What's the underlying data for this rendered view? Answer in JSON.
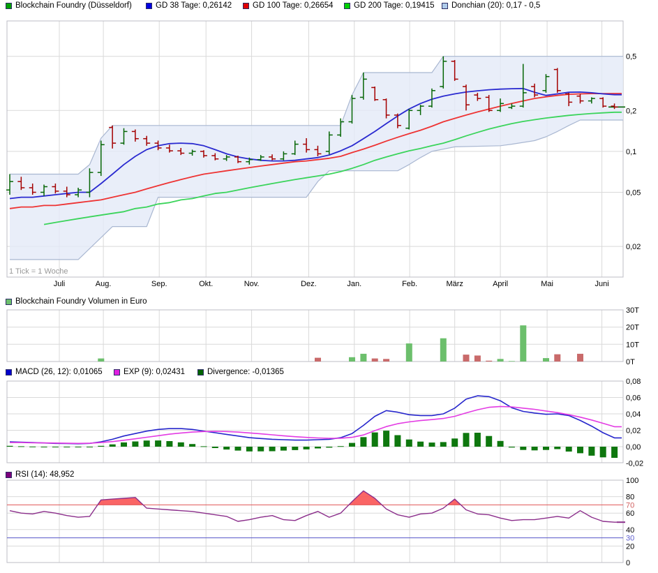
{
  "legends": {
    "price": [
      {
        "label": "Blockchain Foundry (Düsseldorf)",
        "color": "#00A000"
      },
      {
        "label": "GD 38 Tage: 0,26142",
        "color": "#0000E0"
      },
      {
        "label": "GD 100 Tage: 0,26654",
        "color": "#E00000"
      },
      {
        "label": "GD 200 Tage: 0,19415",
        "color": "#00D000"
      },
      {
        "label": "Donchian (20): 0,17 - 0,5",
        "color": "#AECBEA"
      }
    ],
    "volume": [
      {
        "label": "Blockchain Foundry Volumen in Euro",
        "color": "#6CBF6C"
      }
    ],
    "macd": [
      {
        "label": "MACD (26, 12): 0,01065",
        "color": "#0000CC"
      },
      {
        "label": "EXP (9): 0,02431",
        "color": "#E020E0"
      },
      {
        "label": "Divergence: -0,01365",
        "color": "#006400"
      }
    ],
    "rsi": [
      {
        "label": "RSI (14): 48,952",
        "color": "#7B007B"
      }
    ]
  },
  "price_pane": {
    "tick_note": "1 Tick = 1 Woche",
    "months": [
      "Juli",
      "Aug.",
      "Sep.",
      "Okt.",
      "Nov.",
      "Dez.",
      "Jan.",
      "Feb.",
      "März",
      "April",
      "Mai",
      "Juni"
    ],
    "y_ticks": [
      {
        "v": 0.5,
        "label": "0,5"
      },
      {
        "v": 0.2,
        "label": "0,2"
      },
      {
        "v": 0.1,
        "label": "0,1"
      },
      {
        "v": 0.05,
        "label": "0,05"
      },
      {
        "v": 0.02,
        "label": "0,02"
      }
    ]
  },
  "volume_pane": {
    "y_ticks": [
      {
        "v": 30,
        "label": "30T"
      },
      {
        "v": 20,
        "label": "20T"
      },
      {
        "v": 10,
        "label": "10T"
      },
      {
        "v": 0,
        "label": "0T"
      }
    ]
  },
  "macd_pane": {
    "y_ticks": [
      {
        "v": 0.08,
        "label": "0,08"
      },
      {
        "v": 0.06,
        "label": "0,06"
      },
      {
        "v": 0.04,
        "label": "0,04"
      },
      {
        "v": 0.02,
        "label": "0,02"
      },
      {
        "v": 0,
        "label": "0,00"
      },
      {
        "v": -0.02,
        "label": "-0,02"
      }
    ]
  },
  "rsi_pane": {
    "y_ticks": [
      {
        "v": 100,
        "label": "100"
      },
      {
        "v": 80,
        "label": "80"
      },
      {
        "v": 70,
        "label": "70",
        "color": "#D06060"
      },
      {
        "v": 60,
        "label": "60"
      },
      {
        "v": 40,
        "label": "40"
      },
      {
        "v": 30,
        "label": "30",
        "color": "#6060D0"
      },
      {
        "v": 20,
        "label": "20"
      },
      {
        "v": 0,
        "label": "0"
      }
    ]
  },
  "colors": {
    "candle_up": "#066606",
    "candle_down": "#A40000",
    "gd38": "#2A2AD0",
    "gd100": "#EE3333",
    "gd200": "#3BD45B",
    "donchian_border": "#A9B7D1",
    "donchian_fill": "#E3EAF7",
    "vol_up": "#6CBF6C",
    "vol_down": "#C96A6A",
    "macd_line": "#2626CC",
    "signal_line": "#E33BE3",
    "histogram": "#0E770E",
    "rsi_line": "#8B2E8B",
    "rsi_fill": "#FA5454",
    "line70": "#E05555",
    "line30": "#5555C8",
    "grid": "#D9D9D9",
    "border": "#BCBCC6",
    "muted_text": "#999999"
  },
  "chart_data": [
    {
      "type": "ohlc",
      "title": "Blockchain Foundry (Düsseldorf), weekly (1 Tick = 1 Woche)",
      "y_scale": "log",
      "y_ticks": [
        0.5,
        0.2,
        0.1,
        0.05,
        0.02
      ],
      "last_close": 0.212,
      "current": {
        "gd38": 0.26142,
        "gd100": 0.26654,
        "gd200": 0.19415,
        "donchian": "0,17 - 0,5"
      },
      "ohlc": [
        [
          0.052,
          0.068,
          0.048,
          0.06
        ],
        [
          0.06,
          0.065,
          0.052,
          0.054
        ],
        [
          0.054,
          0.058,
          0.048,
          0.05
        ],
        [
          0.05,
          0.057,
          0.047,
          0.055
        ],
        [
          0.055,
          0.058,
          0.049,
          0.051
        ],
        [
          0.051,
          0.055,
          0.046,
          0.048
        ],
        [
          0.048,
          0.054,
          0.046,
          0.052
        ],
        [
          0.05,
          0.075,
          0.046,
          0.07
        ],
        [
          0.07,
          0.12,
          0.066,
          0.112
        ],
        [
          0.15,
          0.155,
          0.105,
          0.115
        ],
        [
          0.115,
          0.148,
          0.112,
          0.14
        ],
        [
          0.14,
          0.145,
          0.118,
          0.124
        ],
        [
          0.124,
          0.13,
          0.11,
          0.115
        ],
        [
          0.115,
          0.12,
          0.102,
          0.106
        ],
        [
          0.106,
          0.112,
          0.098,
          0.101
        ],
        [
          0.101,
          0.106,
          0.094,
          0.097
        ],
        [
          0.097,
          0.103,
          0.093,
          0.1
        ],
        [
          0.1,
          0.102,
          0.09,
          0.093
        ],
        [
          0.093,
          0.097,
          0.086,
          0.088
        ],
        [
          0.088,
          0.094,
          0.085,
          0.091
        ],
        [
          0.091,
          0.093,
          0.082,
          0.084
        ],
        [
          0.084,
          0.09,
          0.08,
          0.087
        ],
        [
          0.087,
          0.094,
          0.085,
          0.091
        ],
        [
          0.091,
          0.095,
          0.086,
          0.088
        ],
        [
          0.088,
          0.1,
          0.086,
          0.096
        ],
        [
          0.096,
          0.12,
          0.094,
          0.113
        ],
        [
          0.113,
          0.125,
          0.098,
          0.103
        ],
        [
          0.103,
          0.11,
          0.092,
          0.096
        ],
        [
          0.1,
          0.14,
          0.095,
          0.132
        ],
        [
          0.132,
          0.175,
          0.128,
          0.165
        ],
        [
          0.165,
          0.26,
          0.16,
          0.245
        ],
        [
          0.25,
          0.38,
          0.24,
          0.34
        ],
        [
          0.295,
          0.3,
          0.235,
          0.24
        ],
        [
          0.24,
          0.245,
          0.175,
          0.185
        ],
        [
          0.185,
          0.19,
          0.148,
          0.155
        ],
        [
          0.148,
          0.205,
          0.145,
          0.2
        ],
        [
          0.2,
          0.22,
          0.185,
          0.215
        ],
        [
          0.215,
          0.29,
          0.21,
          0.28
        ],
        [
          0.3,
          0.5,
          0.29,
          0.46
        ],
        [
          0.46,
          0.47,
          0.33,
          0.34
        ],
        [
          0.3,
          0.31,
          0.2,
          0.22
        ],
        [
          0.26,
          0.27,
          0.235,
          0.245
        ],
        [
          0.25,
          0.26,
          0.195,
          0.2
        ],
        [
          0.2,
          0.245,
          0.195,
          0.225
        ],
        [
          0.21,
          0.225,
          0.205,
          0.215
        ],
        [
          0.215,
          0.44,
          0.21,
          0.27
        ],
        [
          0.3,
          0.315,
          0.25,
          0.26
        ],
        [
          0.28,
          0.37,
          0.27,
          0.355
        ],
        [
          0.4,
          0.41,
          0.27,
          0.28
        ],
        [
          0.265,
          0.27,
          0.215,
          0.23
        ],
        [
          0.255,
          0.265,
          0.225,
          0.235
        ],
        [
          0.235,
          0.25,
          0.225,
          0.245
        ],
        [
          0.245,
          0.25,
          0.21,
          0.215
        ],
        [
          0.215,
          0.225,
          0.205,
          0.212
        ]
      ],
      "overlays": {
        "gd38": [
          0.045,
          0.046,
          0.046,
          0.047,
          0.048,
          0.049,
          0.05,
          0.05,
          0.058,
          0.068,
          0.08,
          0.092,
          0.103,
          0.11,
          0.114,
          0.115,
          0.114,
          0.11,
          0.103,
          0.096,
          0.091,
          0.088,
          0.086,
          0.085,
          0.085,
          0.086,
          0.088,
          0.09,
          0.094,
          0.101,
          0.11,
          0.124,
          0.14,
          0.16,
          0.182,
          0.205,
          0.225,
          0.242,
          0.255,
          0.265,
          0.273,
          0.279,
          0.284,
          0.287,
          0.289,
          0.29,
          0.272,
          0.258,
          0.265,
          0.272,
          0.273,
          0.27,
          0.265,
          0.261
        ],
        "gd100": [
          0.038,
          0.039,
          0.039,
          0.04,
          0.04,
          0.041,
          0.042,
          0.043,
          0.044,
          0.046,
          0.048,
          0.05,
          0.053,
          0.056,
          0.059,
          0.062,
          0.065,
          0.068,
          0.07,
          0.072,
          0.074,
          0.076,
          0.078,
          0.08,
          0.082,
          0.084,
          0.085,
          0.087,
          0.089,
          0.092,
          0.098,
          0.104,
          0.111,
          0.119,
          0.127,
          0.135,
          0.143,
          0.153,
          0.165,
          0.175,
          0.185,
          0.195,
          0.205,
          0.215,
          0.225,
          0.235,
          0.245,
          0.252,
          0.258,
          0.263,
          0.265,
          0.266,
          0.266,
          0.2665
        ],
        "gd200": [
          null,
          null,
          null,
          0.029,
          0.03,
          0.031,
          0.032,
          0.033,
          0.034,
          0.035,
          0.036,
          0.038,
          0.039,
          0.041,
          0.042,
          0.044,
          0.045,
          0.047,
          0.049,
          0.05,
          0.052,
          0.054,
          0.056,
          0.058,
          0.06,
          0.062,
          0.064,
          0.066,
          0.068,
          0.071,
          0.075,
          0.08,
          0.086,
          0.091,
          0.096,
          0.101,
          0.105,
          0.11,
          0.115,
          0.122,
          0.13,
          0.138,
          0.146,
          0.153,
          0.16,
          0.166,
          0.171,
          0.176,
          0.18,
          0.184,
          0.187,
          0.19,
          0.192,
          0.194
        ],
        "donchian_upper": [
          [
            0,
            0.068
          ],
          [
            6,
            0.068
          ],
          [
            7,
            0.08
          ],
          [
            8,
            0.125
          ],
          [
            9,
            0.155
          ],
          [
            29,
            0.155
          ],
          [
            30,
            0.26
          ],
          [
            31,
            0.38
          ],
          [
            37,
            0.38
          ],
          [
            38,
            0.5
          ],
          [
            53,
            0.5
          ]
        ],
        "donchian_lower": [
          [
            0,
            0.016
          ],
          [
            6,
            0.016
          ],
          [
            9,
            0.028
          ],
          [
            12,
            0.028
          ],
          [
            13,
            0.046
          ],
          [
            26,
            0.046
          ],
          [
            27,
            0.06
          ],
          [
            28,
            0.072
          ],
          [
            34,
            0.072
          ],
          [
            35,
            0.08
          ],
          [
            36,
            0.09
          ],
          [
            37,
            0.1
          ],
          [
            39,
            0.108
          ],
          [
            43,
            0.11
          ],
          [
            44,
            0.113
          ],
          [
            46,
            0.12
          ],
          [
            47,
            0.128
          ],
          [
            48,
            0.14
          ],
          [
            49,
            0.155
          ],
          [
            50,
            0.17
          ],
          [
            53,
            0.17
          ]
        ]
      }
    },
    {
      "type": "bar",
      "title": "Blockchain Foundry Volumen in Euro",
      "unit": "T",
      "ylim": [
        0,
        30
      ],
      "values": [
        0,
        0,
        0,
        0,
        0,
        0,
        0,
        0,
        1.8,
        0,
        0,
        0,
        0,
        0,
        0,
        0,
        0,
        0,
        0,
        0,
        0,
        0,
        0,
        0,
        0,
        0,
        0,
        2.2,
        0,
        0,
        2.5,
        4.5,
        1.8,
        1.5,
        0,
        10.5,
        0,
        0,
        13.5,
        0,
        4,
        3.5,
        0.5,
        1.5,
        0.3,
        21,
        0,
        2,
        4.2,
        0,
        4.5,
        0,
        0,
        0
      ]
    },
    {
      "type": "line+bar",
      "title": "MACD",
      "ylim": [
        -0.02,
        0.08
      ],
      "current": {
        "macd": 0.01065,
        "exp": 0.02431,
        "divergence": -0.01365
      },
      "series": [
        {
          "name": "MACD (26, 12)",
          "type": "line",
          "values": [
            0.006,
            0.0055,
            0.005,
            0.0045,
            0.004,
            0.0038,
            0.0036,
            0.004,
            0.006,
            0.009,
            0.013,
            0.016,
            0.019,
            0.021,
            0.022,
            0.022,
            0.021,
            0.019,
            0.017,
            0.015,
            0.013,
            0.011,
            0.01,
            0.009,
            0.0085,
            0.008,
            0.008,
            0.0085,
            0.009,
            0.011,
            0.016,
            0.026,
            0.037,
            0.044,
            0.042,
            0.039,
            0.038,
            0.038,
            0.04,
            0.047,
            0.058,
            0.062,
            0.061,
            0.056,
            0.0475,
            0.043,
            0.041,
            0.0395,
            0.04,
            0.038,
            0.032,
            0.025,
            0.017,
            0.0107
          ]
        },
        {
          "name": "EXP (9)",
          "type": "line",
          "values": [
            0.005,
            0.005,
            0.0048,
            0.0046,
            0.0044,
            0.0042,
            0.004,
            0.0042,
            0.005,
            0.0062,
            0.0078,
            0.0096,
            0.0115,
            0.0134,
            0.0152,
            0.0167,
            0.0178,
            0.0185,
            0.0187,
            0.0185,
            0.0178,
            0.0168,
            0.0157,
            0.0145,
            0.0133,
            0.0122,
            0.0113,
            0.0106,
            0.0102,
            0.0103,
            0.0114,
            0.0143,
            0.0196,
            0.0245,
            0.028,
            0.0302,
            0.0318,
            0.033,
            0.0344,
            0.037,
            0.0412,
            0.045,
            0.048,
            0.049,
            0.0485,
            0.047,
            0.0455,
            0.0435,
            0.0415,
            0.039,
            0.036,
            0.0325,
            0.0285,
            0.0243
          ]
        },
        {
          "name": "Divergence",
          "type": "bar",
          "values": [
            0.001,
            0.0005,
            0.0002,
            -0.0001,
            -0.0004,
            -0.0004,
            -0.0004,
            -0.0002,
            0.001,
            0.0028,
            0.0052,
            0.0064,
            0.0075,
            0.0076,
            0.0068,
            0.0053,
            0.0032,
            0.0005,
            -0.0017,
            -0.0035,
            -0.0048,
            -0.0058,
            -0.0057,
            -0.0055,
            -0.0048,
            -0.0042,
            -0.0033,
            -0.0021,
            -0.0012,
            0.0007,
            0.0046,
            0.0117,
            0.0174,
            0.0195,
            0.014,
            0.0088,
            0.0062,
            0.005,
            0.0056,
            0.01,
            0.0168,
            0.017,
            0.013,
            0.007,
            -0.001,
            -0.004,
            -0.0045,
            -0.004,
            -0.003,
            -0.006,
            -0.008,
            -0.011,
            -0.013,
            -0.0136
          ]
        }
      ]
    },
    {
      "type": "line",
      "title": "RSI (14)",
      "ylim": [
        0,
        100
      ],
      "overbought": 70,
      "oversold": 30,
      "current": 48.952,
      "values": [
        63,
        60,
        59,
        62,
        60,
        57,
        55,
        56,
        76,
        77,
        78,
        79,
        66,
        65,
        64,
        63,
        62,
        60,
        58,
        56,
        50,
        52,
        55,
        57,
        52,
        51,
        57,
        62,
        55,
        60,
        74,
        87,
        78,
        65,
        58,
        55,
        59,
        60,
        66,
        77,
        64,
        59,
        58,
        54,
        51,
        52,
        52,
        54,
        56,
        54,
        63,
        55,
        50,
        49
      ]
    }
  ]
}
